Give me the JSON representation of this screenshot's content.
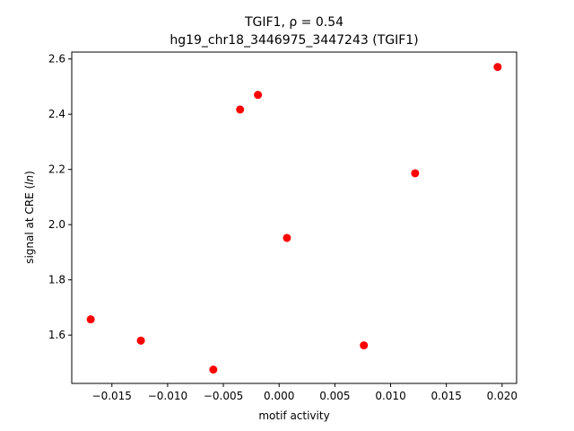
{
  "chart_data": {
    "type": "scatter",
    "title_line1": "TGIF1, ρ = 0.54",
    "title_line2": "hg19_chr18_3446975_3447243 (TGIF1)",
    "xlabel": "motif activity",
    "ylabel_prefix": "signal at CRE (",
    "ylabel_italic": "ln",
    "ylabel_suffix": ")",
    "xlim": [
      -0.0186,
      0.0213
    ],
    "ylim": [
      1.425,
      2.625
    ],
    "xticks": [
      -0.015,
      -0.01,
      -0.005,
      0.0,
      0.005,
      0.01,
      0.015,
      0.02
    ],
    "xtick_labels": [
      "−0.015",
      "−0.010",
      "−0.005",
      "0.000",
      "0.005",
      "0.010",
      "0.015",
      "0.020"
    ],
    "yticks": [
      1.6,
      1.8,
      2.0,
      2.2,
      2.4,
      2.6
    ],
    "ytick_labels": [
      "1.6",
      "1.8",
      "2.0",
      "2.2",
      "2.4",
      "2.6"
    ],
    "grid": false,
    "marker_color": "#ff0000",
    "points": [
      {
        "x": -0.0169,
        "y": 1.657
      },
      {
        "x": -0.0124,
        "y": 1.58
      },
      {
        "x": -0.0059,
        "y": 1.475
      },
      {
        "x": -0.0035,
        "y": 2.417
      },
      {
        "x": -0.0019,
        "y": 2.47
      },
      {
        "x": 0.0007,
        "y": 1.952
      },
      {
        "x": 0.0076,
        "y": 1.563
      },
      {
        "x": 0.0122,
        "y": 2.186
      },
      {
        "x": 0.0196,
        "y": 2.571
      }
    ]
  }
}
